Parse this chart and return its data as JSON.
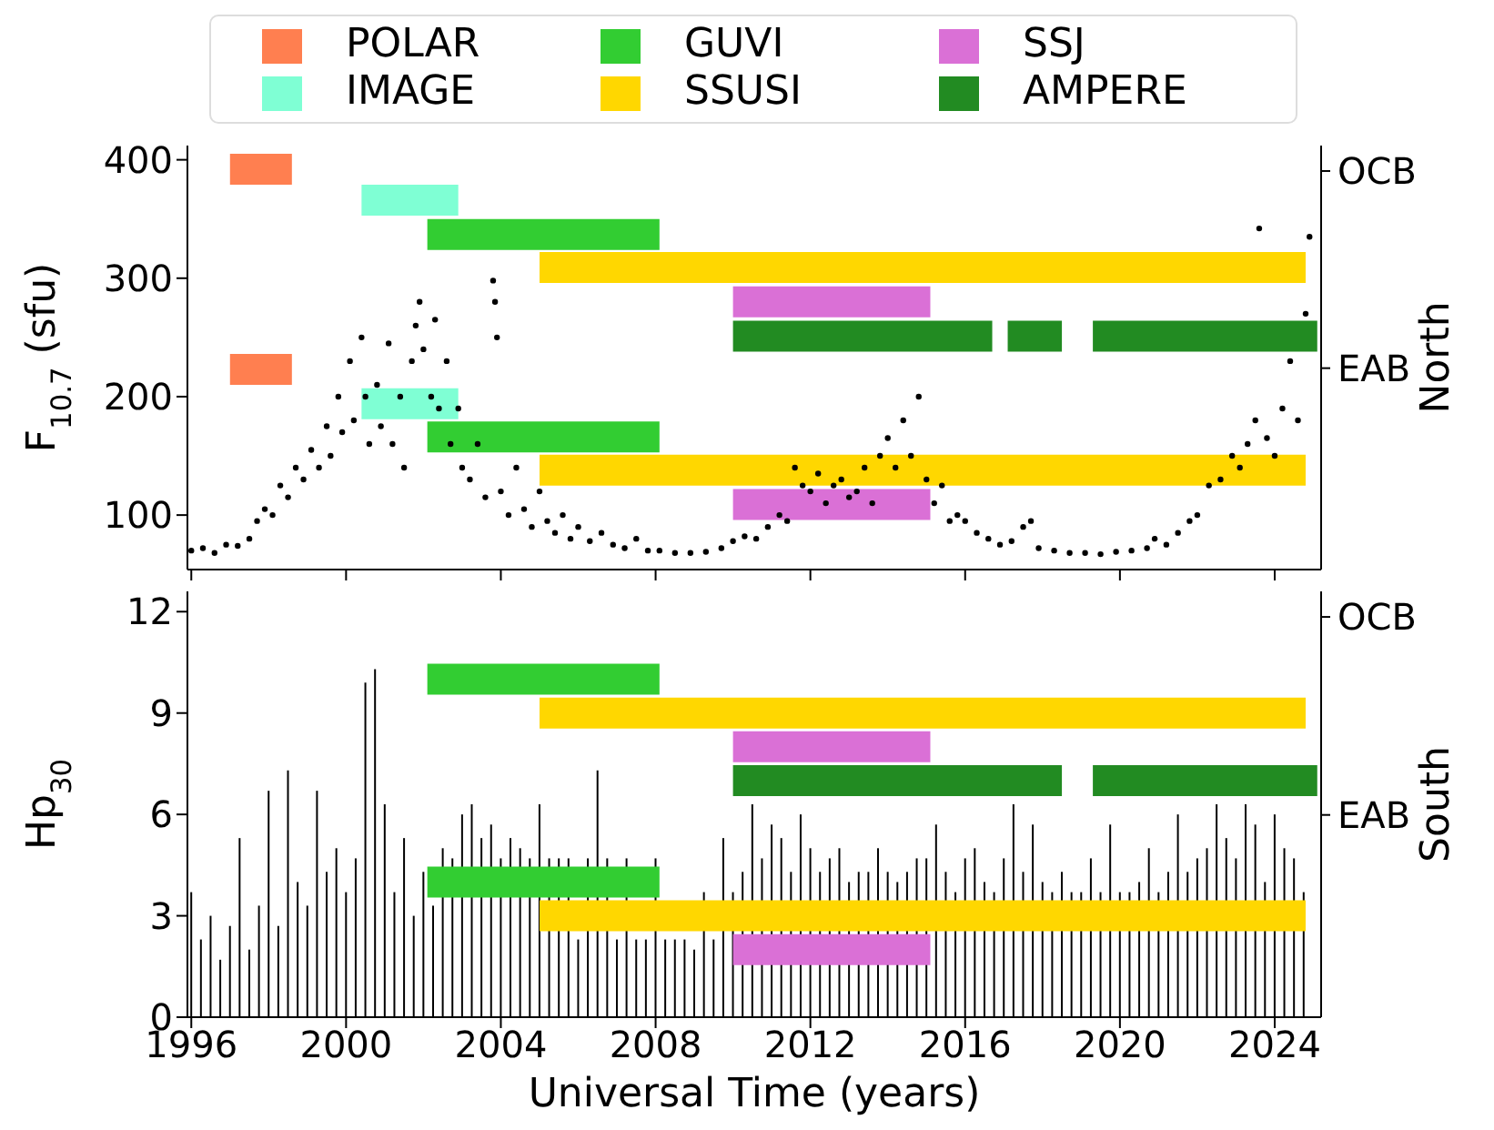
{
  "chart_data": [
    {
      "type": "scatter",
      "ylabel": "F$_{10.7}$ (sfu)",
      "y2label": "North",
      "xlim": [
        1995.9,
        2025.2
      ],
      "xticks": [
        1996,
        2000,
        2004,
        2008,
        2012,
        2016,
        2020,
        2024
      ],
      "ylim": [
        54,
        412
      ],
      "yticks": [
        100,
        200,
        300,
        400
      ],
      "annotations": [
        "OCB",
        "EAB"
      ],
      "tick_labels": "y",
      "legend": "top",
      "series": [
        {
          "color": "#000000",
          "x": [
            1996.0,
            1996.3,
            1996.6,
            1996.9,
            1997.2,
            1997.5,
            1997.7,
            1997.9,
            1998.1,
            1998.3,
            1998.5,
            1998.7,
            1998.9,
            1999.1,
            1999.3,
            1999.5,
            1999.6,
            1999.8,
            1999.9,
            2000.1,
            2000.2,
            2000.4,
            2000.5,
            2000.6,
            2000.8,
            2000.9,
            2001.1,
            2001.2,
            2001.4,
            2001.5,
            2001.7,
            2001.8,
            2001.9,
            2002.0,
            2002.2,
            2002.3,
            2002.4,
            2002.6,
            2002.7,
            2002.9,
            2003.0,
            2003.2,
            2003.4,
            2003.6,
            2003.8,
            2003.85,
            2003.9,
            2004.0,
            2004.2,
            2004.4,
            2004.6,
            2004.8,
            2005.0,
            2005.2,
            2005.4,
            2005.6,
            2005.8,
            2006.0,
            2006.3,
            2006.6,
            2006.9,
            2007.2,
            2007.5,
            2007.8,
            2008.1,
            2008.5,
            2008.9,
            2009.3,
            2009.7,
            2010.0,
            2010.3,
            2010.6,
            2010.9,
            2011.2,
            2011.4,
            2011.6,
            2011.8,
            2012.0,
            2012.2,
            2012.4,
            2012.6,
            2012.8,
            2013.0,
            2013.2,
            2013.4,
            2013.6,
            2013.8,
            2014.0,
            2014.2,
            2014.4,
            2014.6,
            2014.8,
            2015.0,
            2015.2,
            2015.4,
            2015.6,
            2015.8,
            2016.0,
            2016.3,
            2016.6,
            2016.9,
            2017.2,
            2017.5,
            2017.7,
            2017.9,
            2018.3,
            2018.7,
            2019.1,
            2019.5,
            2019.9,
            2020.3,
            2020.7,
            2020.9,
            2021.2,
            2021.5,
            2021.8,
            2022.0,
            2022.3,
            2022.6,
            2022.9,
            2023.1,
            2023.3,
            2023.5,
            2023.6,
            2023.8,
            2024.0,
            2024.2,
            2024.4,
            2024.6,
            2024.8,
            2024.9
          ],
          "values": [
            70,
            72,
            68,
            75,
            74,
            80,
            95,
            105,
            100,
            125,
            115,
            140,
            130,
            155,
            140,
            175,
            150,
            200,
            170,
            230,
            180,
            250,
            200,
            160,
            210,
            175,
            245,
            160,
            200,
            140,
            230,
            260,
            280,
            240,
            200,
            265,
            190,
            230,
            160,
            190,
            140,
            130,
            160,
            115,
            298,
            280,
            250,
            120,
            100,
            140,
            105,
            90,
            120,
            95,
            85,
            100,
            80,
            90,
            78,
            85,
            75,
            72,
            80,
            70,
            70,
            68,
            68,
            69,
            72,
            78,
            82,
            80,
            90,
            100,
            95,
            140,
            125,
            120,
            135,
            110,
            125,
            130,
            115,
            120,
            140,
            110,
            150,
            165,
            140,
            180,
            150,
            200,
            130,
            110,
            125,
            95,
            100,
            95,
            85,
            80,
            75,
            78,
            90,
            95,
            72,
            70,
            68,
            68,
            67,
            69,
            70,
            72,
            80,
            75,
            85,
            95,
            100,
            125,
            130,
            150,
            140,
            160,
            180,
            342,
            165,
            150,
            190,
            230,
            180,
            270,
            335
          ]
        },
        {
          "type": "line",
          "name": "POLAR",
          "color": "#ff7f50",
          "x": [
            1997.0,
            1998.6
          ],
          "values": [
            392,
            392
          ]
        },
        {
          "type": "line",
          "color": "#ff7f50",
          "x": [
            1997.0,
            1998.6
          ],
          "values": [
            223,
            223
          ]
        },
        {
          "type": "line",
          "name": "IMAGE",
          "color": "#7fffd4",
          "x": [
            2000.4,
            2002.9
          ],
          "values": [
            366,
            366
          ]
        },
        {
          "type": "line",
          "color": "#7fffd4",
          "x": [
            2000.4,
            2002.9
          ],
          "values": [
            194,
            194
          ]
        },
        {
          "type": "line",
          "name": "GUVI",
          "color": "#32cd32",
          "x": [
            2002.1,
            2008.1
          ],
          "values": [
            337,
            337
          ]
        },
        {
          "type": "line",
          "color": "#32cd32",
          "x": [
            2002.1,
            2008.1
          ],
          "values": [
            166,
            166
          ]
        },
        {
          "type": "line",
          "name": "SSUSI",
          "color": "#ffd700",
          "x": [
            2005.0,
            2024.8
          ],
          "values": [
            309,
            309
          ]
        },
        {
          "type": "line",
          "color": "#ffd700",
          "x": [
            2005.0,
            2024.8
          ],
          "values": [
            138,
            138
          ]
        },
        {
          "type": "line",
          "name": "SSJ",
          "color": "#da70d6",
          "x": [
            2010.0,
            2015.1
          ],
          "values": [
            280,
            280
          ]
        },
        {
          "type": "line",
          "color": "#da70d6",
          "x": [
            2010.0,
            2015.1
          ],
          "values": [
            109,
            109
          ]
        },
        {
          "type": "line",
          "name": "AMPERE",
          "color": "#228b22",
          "x": [
            2010.0,
            2016.7
          ],
          "values": [
            251,
            251
          ]
        },
        {
          "type": "line",
          "color": "#228b22",
          "x": [
            2017.1,
            2018.5
          ],
          "values": [
            251,
            251
          ]
        },
        {
          "type": "line",
          "color": "#228b22",
          "x": [
            2019.3,
            2025.1
          ],
          "values": [
            251,
            251
          ]
        }
      ]
    },
    {
      "type": "bar",
      "ylabel": "Hp$_{30}$",
      "y2label": "South",
      "xlabel": "Universal Time (years)",
      "xlim": [
        1995.9,
        2025.2
      ],
      "xticks": [
        1996,
        2000,
        2004,
        2008,
        2012,
        2016,
        2020,
        2024
      ],
      "ylim": [
        0,
        12.6
      ],
      "yticks": [
        0,
        3,
        6,
        9,
        12
      ],
      "annotations": [
        "OCB",
        "EAB"
      ],
      "series": [
        {
          "color": "#000000",
          "x": [
            1996.0,
            1996.25,
            1996.5,
            1996.75,
            1997.0,
            1997.25,
            1997.5,
            1997.75,
            1998.0,
            1998.25,
            1998.5,
            1998.75,
            1999.0,
            1999.25,
            1999.5,
            1999.75,
            2000.0,
            2000.25,
            2000.5,
            2000.75,
            2001.0,
            2001.25,
            2001.5,
            2001.75,
            2002.0,
            2002.25,
            2002.5,
            2002.75,
            2003.0,
            2003.25,
            2003.5,
            2003.75,
            2004.0,
            2004.25,
            2004.5,
            2004.75,
            2005.0,
            2005.25,
            2005.5,
            2005.75,
            2006.0,
            2006.25,
            2006.5,
            2006.75,
            2007.0,
            2007.25,
            2007.5,
            2007.75,
            2008.0,
            2008.25,
            2008.5,
            2008.75,
            2009.0,
            2009.25,
            2009.5,
            2009.75,
            2010.0,
            2010.25,
            2010.5,
            2010.75,
            2011.0,
            2011.25,
            2011.5,
            2011.75,
            2012.0,
            2012.25,
            2012.5,
            2012.75,
            2013.0,
            2013.25,
            2013.5,
            2013.75,
            2014.0,
            2014.25,
            2014.5,
            2014.75,
            2015.0,
            2015.25,
            2015.5,
            2015.75,
            2016.0,
            2016.25,
            2016.5,
            2016.75,
            2017.0,
            2017.25,
            2017.5,
            2017.75,
            2018.0,
            2018.25,
            2018.5,
            2018.75,
            2019.0,
            2019.25,
            2019.5,
            2019.75,
            2020.0,
            2020.25,
            2020.5,
            2020.75,
            2021.0,
            2021.25,
            2021.5,
            2021.75,
            2022.0,
            2022.25,
            2022.5,
            2022.75,
            2023.0,
            2023.25,
            2023.5,
            2023.75,
            2024.0,
            2024.25,
            2024.5,
            2024.75
          ],
          "values": [
            3.7,
            2.3,
            3.0,
            1.7,
            2.7,
            5.3,
            2.0,
            3.3,
            6.7,
            2.7,
            7.3,
            4.0,
            3.3,
            6.7,
            4.3,
            5.0,
            3.7,
            4.7,
            9.9,
            10.3,
            6.3,
            3.7,
            5.3,
            3.0,
            4.3,
            3.3,
            5.0,
            4.7,
            6.0,
            6.3,
            5.3,
            5.7,
            4.7,
            5.3,
            5.0,
            4.7,
            6.3,
            4.7,
            4.7,
            4.7,
            2.3,
            4.7,
            7.3,
            4.7,
            2.3,
            4.7,
            2.3,
            2.3,
            4.7,
            2.3,
            2.3,
            2.3,
            2.0,
            3.7,
            2.3,
            5.3,
            3.7,
            4.3,
            6.3,
            4.7,
            5.7,
            5.3,
            4.3,
            6.0,
            5.0,
            4.3,
            4.7,
            5.0,
            4.0,
            4.3,
            4.3,
            5.0,
            4.3,
            4.0,
            4.3,
            4.7,
            4.7,
            5.7,
            4.3,
            3.7,
            4.7,
            5.0,
            4.0,
            3.7,
            4.7,
            6.3,
            4.3,
            5.7,
            4.0,
            3.7,
            4.3,
            3.7,
            3.7,
            4.7,
            3.7,
            5.7,
            3.7,
            3.7,
            4.0,
            5.0,
            3.7,
            4.3,
            6.0,
            4.3,
            4.7,
            5.0,
            6.3,
            5.3,
            4.7,
            6.3,
            5.7,
            4.0,
            6.0,
            5.0,
            4.7,
            3.7
          ]
        },
        {
          "type": "line",
          "color": "#32cd32",
          "x": [
            2002.1,
            2008.1
          ],
          "values": [
            10.0,
            10.0
          ]
        },
        {
          "type": "line",
          "color": "#32cd32",
          "x": [
            2002.1,
            2008.1
          ],
          "values": [
            4.0,
            4.0
          ]
        },
        {
          "type": "line",
          "color": "#ffd700",
          "x": [
            2005.0,
            2024.8
          ],
          "values": [
            9.0,
            9.0
          ]
        },
        {
          "type": "line",
          "color": "#ffd700",
          "x": [
            2005.0,
            2024.8
          ],
          "values": [
            3.0,
            3.0
          ]
        },
        {
          "type": "line",
          "color": "#da70d6",
          "x": [
            2010.0,
            2015.1
          ],
          "values": [
            8.0,
            8.0
          ]
        },
        {
          "type": "line",
          "color": "#da70d6",
          "x": [
            2010.0,
            2015.1
          ],
          "values": [
            2.0,
            2.0
          ]
        },
        {
          "type": "line",
          "color": "#228b22",
          "x": [
            2010.0,
            2018.5
          ],
          "values": [
            7.0,
            7.0
          ]
        },
        {
          "type": "line",
          "color": "#228b22",
          "x": [
            2019.3,
            2025.1
          ],
          "values": [
            7.0,
            7.0
          ]
        }
      ]
    }
  ]
}
